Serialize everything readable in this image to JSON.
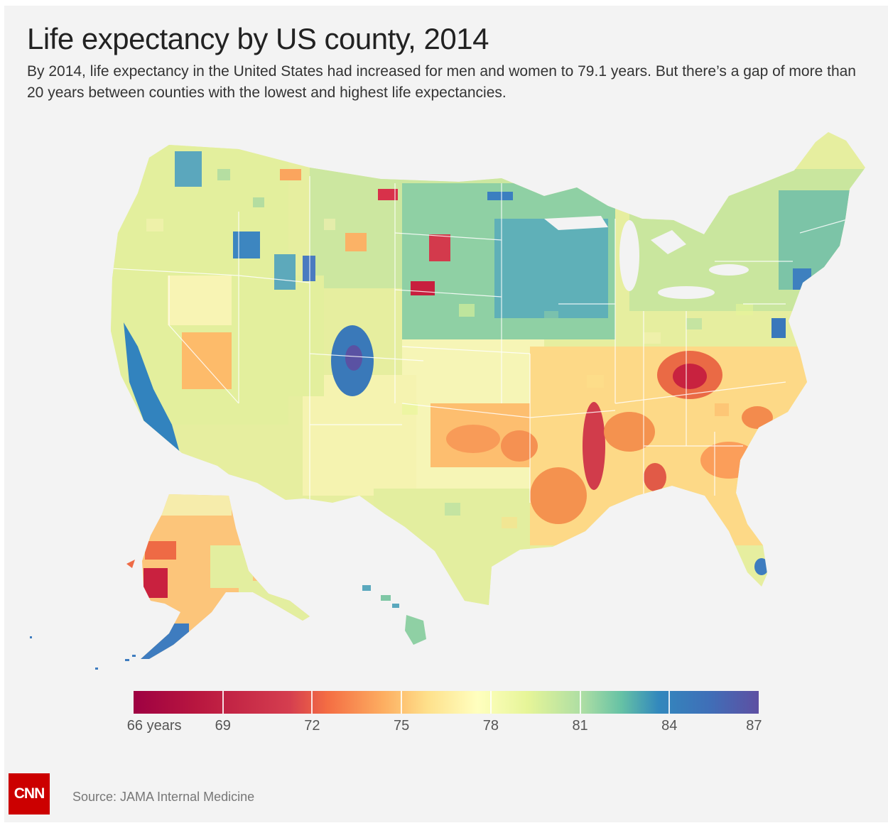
{
  "header": {
    "title": "Life expectancy by US county, 2014",
    "subtitle": "By 2014, life expectancy in the United States had increased for men and women to 79.1 years. But there’s a gap of more than 20 years between counties with the lowest and highest life expectancies."
  },
  "legend": {
    "min": 66,
    "max": 87,
    "ticks": [
      {
        "value": 66,
        "label": "66 years"
      },
      {
        "value": 69,
        "label": "69"
      },
      {
        "value": 72,
        "label": "72"
      },
      {
        "value": 75,
        "label": "75"
      },
      {
        "value": 78,
        "label": "78"
      },
      {
        "value": 81,
        "label": "81"
      },
      {
        "value": 84,
        "label": "84"
      },
      {
        "value": 87,
        "label": "87"
      }
    ]
  },
  "colors": {
    "background": "#f3f3f3",
    "scale_low": "#9e0142",
    "scale_mid": "#ffffbf",
    "scale_high": "#5e4fa2",
    "brand": "#cc0000"
  },
  "footer": {
    "logo": "CNN",
    "source": "Source: JAMA Internal Medicine"
  }
}
